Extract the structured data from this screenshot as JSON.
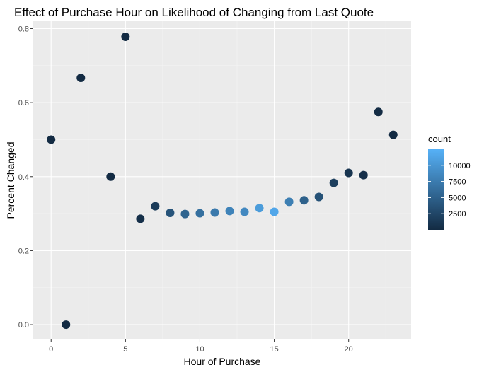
{
  "chart_data": {
    "type": "scatter",
    "title": "Effect of Purchase Hour on Likelihood of Changing from Last Quote",
    "xlabel": "Hour of Purchase",
    "ylabel": "Percent Changed",
    "xlim": [
      -1.2,
      24.2
    ],
    "ylim": [
      -0.04,
      0.82
    ],
    "xticks": [
      0,
      5,
      10,
      15,
      20
    ],
    "xtick_labels": [
      "0",
      "5",
      "10",
      "15",
      "20"
    ],
    "yticks": [
      0.0,
      0.2,
      0.4,
      0.6,
      0.8
    ],
    "ytick_labels": [
      "0.0",
      "0.2",
      "0.4",
      "0.6",
      "0.8"
    ],
    "grid": true,
    "background": "#ebebeb",
    "legend": {
      "title": "count",
      "placement": "right",
      "labels": [
        "10000",
        "7500",
        "5000",
        "2500"
      ],
      "values": [
        10000,
        7500,
        5000,
        2500
      ],
      "range": [
        1,
        12500
      ],
      "color_low": "#132b43",
      "color_high": "#56b1f7"
    },
    "points": [
      {
        "x": 0,
        "y": 0.5,
        "count": 10
      },
      {
        "x": 1,
        "y": 0.0,
        "count": 2
      },
      {
        "x": 2,
        "y": 0.667,
        "count": 3
      },
      {
        "x": 4,
        "y": 0.4,
        "count": 5
      },
      {
        "x": 5,
        "y": 0.778,
        "count": 9
      },
      {
        "x": 6,
        "y": 0.286,
        "count": 400
      },
      {
        "x": 7,
        "y": 0.32,
        "count": 1500
      },
      {
        "x": 8,
        "y": 0.302,
        "count": 3800
      },
      {
        "x": 9,
        "y": 0.299,
        "count": 5300
      },
      {
        "x": 10,
        "y": 0.301,
        "count": 6400
      },
      {
        "x": 11,
        "y": 0.303,
        "count": 7300
      },
      {
        "x": 12,
        "y": 0.307,
        "count": 8200
      },
      {
        "x": 13,
        "y": 0.305,
        "count": 8700
      },
      {
        "x": 14,
        "y": 0.315,
        "count": 10500
      },
      {
        "x": 15,
        "y": 0.305,
        "count": 11500
      },
      {
        "x": 16,
        "y": 0.332,
        "count": 7800
      },
      {
        "x": 17,
        "y": 0.336,
        "count": 5000
      },
      {
        "x": 18,
        "y": 0.345,
        "count": 3600
      },
      {
        "x": 19,
        "y": 0.383,
        "count": 1900
      },
      {
        "x": 20,
        "y": 0.41,
        "count": 900
      },
      {
        "x": 21,
        "y": 0.404,
        "count": 400
      },
      {
        "x": 22,
        "y": 0.575,
        "count": 100
      },
      {
        "x": 23,
        "y": 0.513,
        "count": 20
      }
    ]
  }
}
